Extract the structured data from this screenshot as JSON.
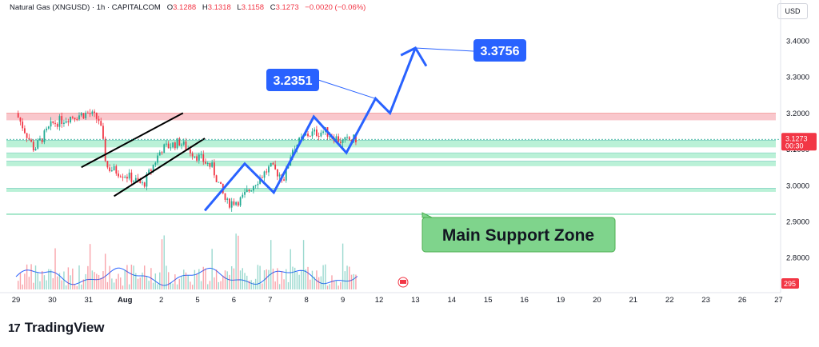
{
  "header": {
    "symbol": "Natural Gas (XNGUSD) · 1h · CAPITALCOM",
    "open_label": "O",
    "open": "3.1288",
    "high_label": "H",
    "high": "3.1318",
    "low_label": "L",
    "low": "3.1158",
    "close_label": "C",
    "close": "3.1273",
    "change": "−0.0020 (−0.06%)"
  },
  "currency": "USD",
  "brand": "TradingView",
  "colors": {
    "up": "#22ab94",
    "down": "#f23645",
    "projection": "#2962ff",
    "resistance_zone": "#f7b4bb",
    "support_zone": "#a3ecc9",
    "oscillator": "#2962ff",
    "annotation_green": "#7fd48c"
  },
  "chart_data": {
    "type": "candlestick",
    "title": "Natural Gas (XNGUSD) · 1h · CAPITALCOM",
    "x_tick_labels": [
      "29",
      "30",
      "31",
      "Aug",
      "2",
      "5",
      "6",
      "7",
      "8",
      "9",
      "12",
      "13",
      "14",
      "15",
      "16",
      "19",
      "20",
      "21",
      "22",
      "23",
      "26",
      "27"
    ],
    "y_tick_labels": [
      "3.4000",
      "3.3000",
      "3.2000",
      "3.1000",
      "3.0000",
      "2.9000",
      "2.8000"
    ],
    "ylim": [
      2.75,
      3.46
    ],
    "current_price": "3.1273",
    "countdown": "00:30",
    "volume_value_label": "295",
    "grid": false,
    "zones": [
      {
        "kind": "resistance",
        "low": 3.18,
        "high": 3.2
      },
      {
        "kind": "support",
        "low": 3.105,
        "high": 3.125
      },
      {
        "kind": "support",
        "low": 3.075,
        "high": 3.09
      },
      {
        "kind": "support",
        "low": 3.053,
        "high": 3.067
      },
      {
        "kind": "support",
        "low": 2.982,
        "high": 2.992
      }
    ],
    "support_line": 2.92,
    "price_path": [
      {
        "t": 0.0,
        "v": 3.2
      },
      {
        "t": 0.5,
        "v": 3.1
      },
      {
        "t": 1.0,
        "v": 3.17
      },
      {
        "t": 1.5,
        "v": 3.19
      },
      {
        "t": 2.0,
        "v": 3.2
      },
      {
        "t": 2.3,
        "v": 3.18
      },
      {
        "t": 2.5,
        "v": 3.05
      },
      {
        "t": 3.0,
        "v": 3.03
      },
      {
        "t": 3.5,
        "v": 3.0
      },
      {
        "t": 4.0,
        "v": 3.1
      },
      {
        "t": 4.5,
        "v": 3.12
      },
      {
        "t": 5.0,
        "v": 3.08
      },
      {
        "t": 5.4,
        "v": 3.05
      },
      {
        "t": 5.8,
        "v": 2.95
      },
      {
        "t": 6.2,
        "v": 2.96
      },
      {
        "t": 6.6,
        "v": 3.01
      },
      {
        "t": 7.0,
        "v": 3.05
      },
      {
        "t": 7.4,
        "v": 3.02
      },
      {
        "t": 7.6,
        "v": 3.1
      },
      {
        "t": 8.0,
        "v": 3.14
      },
      {
        "t": 8.5,
        "v": 3.15
      },
      {
        "t": 9.0,
        "v": 3.12
      },
      {
        "t": 9.4,
        "v": 3.13
      }
    ],
    "channel_lines": [
      {
        "from": [
          1.8,
          3.05
        ],
        "to": [
          4.6,
          3.2
        ]
      },
      {
        "from": [
          2.7,
          2.97
        ],
        "to": [
          5.2,
          3.13
        ]
      }
    ],
    "projection_path": [
      {
        "t": 5.2,
        "v": 2.93
      },
      {
        "t": 6.3,
        "v": 3.06
      },
      {
        "t": 7.1,
        "v": 2.98
      },
      {
        "t": 8.2,
        "v": 3.19
      },
      {
        "t": 9.1,
        "v": 3.09
      },
      {
        "t": 9.9,
        "v": 3.24
      },
      {
        "t": 10.3,
        "v": 3.2
      },
      {
        "t": 11.0,
        "v": 3.38
      }
    ],
    "projection_head": [
      {
        "t": 10.6,
        "v": 3.36
      },
      {
        "t": 11.0,
        "v": 3.38
      },
      {
        "t": 11.3,
        "v": 3.33
      }
    ],
    "annotations": [
      {
        "text": "3.2351",
        "kind": "target-label",
        "anchor": [
          9.9,
          3.24
        ]
      },
      {
        "text": "3.3756",
        "kind": "target-label",
        "anchor": [
          11.0,
          3.38
        ]
      },
      {
        "text": "Main Support Zone",
        "kind": "callout"
      }
    ]
  }
}
